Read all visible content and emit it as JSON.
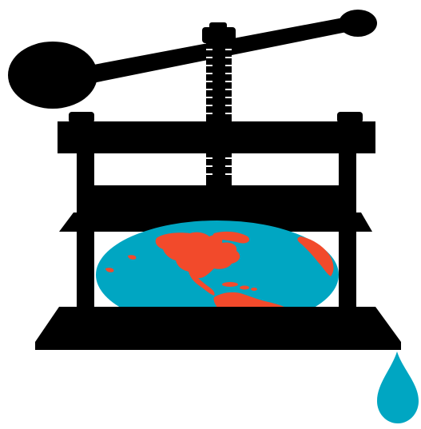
{
  "colors": {
    "press": "#000000",
    "ocean": "#00a6c2",
    "land": "#f24a2b",
    "drop": "#00a6c2",
    "background": "#ffffff"
  },
  "icons": {
    "press": "book-press-icon",
    "globe": "squashed-globe-icon",
    "drop": "water-drop-icon"
  }
}
